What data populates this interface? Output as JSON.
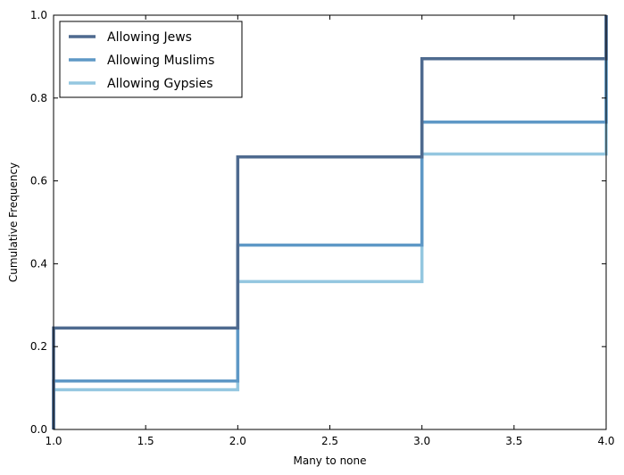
{
  "chart_data": {
    "type": "line",
    "step": true,
    "xlabel": "Many to none",
    "ylabel": "Cumulative Frequency",
    "xlim": [
      1.0,
      4.0
    ],
    "ylim": [
      0.0,
      1.0
    ],
    "xticks": [
      1.0,
      1.5,
      2.0,
      2.5,
      3.0,
      3.5,
      4.0
    ],
    "xtick_labels": [
      "1.0",
      "1.5",
      "2.0",
      "2.5",
      "3.0",
      "3.5",
      "4.0"
    ],
    "yticks": [
      0.0,
      0.2,
      0.4,
      0.6,
      0.8,
      1.0
    ],
    "ytick_labels": [
      "0.0",
      "0.2",
      "0.4",
      "0.6",
      "0.8",
      "1.0"
    ],
    "grid": false,
    "legend_position": "top-left",
    "series": [
      {
        "name": "Allowing Jews",
        "color": "#4e6a8f",
        "x": [
          1,
          2,
          3,
          4
        ],
        "y": [
          0.245,
          0.658,
          0.895,
          1.0
        ]
      },
      {
        "name": "Allowing Muslims",
        "color": "#5e98c6",
        "x": [
          1,
          2,
          3,
          4
        ],
        "y": [
          0.117,
          0.445,
          0.742,
          1.0
        ]
      },
      {
        "name": "Allowing Gypsies",
        "color": "#94c7e0",
        "x": [
          1,
          2,
          3,
          4
        ],
        "y": [
          0.096,
          0.357,
          0.665,
          1.0
        ]
      }
    ]
  }
}
